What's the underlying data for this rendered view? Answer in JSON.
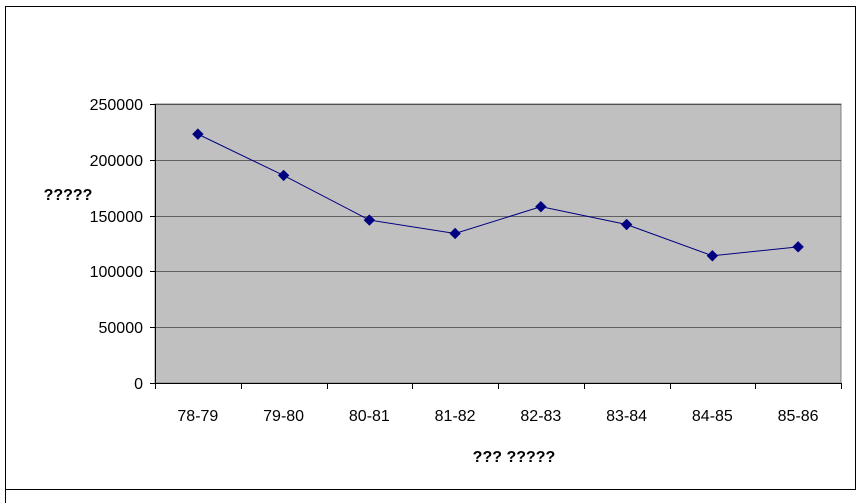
{
  "chart_data": {
    "type": "line",
    "categories": [
      "78-79",
      "79-80",
      "80-81",
      "81-82",
      "82-83",
      "83-84",
      "84-85",
      "85-86"
    ],
    "series": [
      {
        "values": [
          223000,
          186000,
          146000,
          134000,
          158000,
          142000,
          114000,
          122000
        ]
      }
    ],
    "y_ticks": [
      0,
      50000,
      100000,
      150000,
      200000,
      250000
    ],
    "ylim": [
      0,
      250000
    ],
    "xlabel": "??? ?????",
    "ylabel": "?????",
    "grid": true,
    "colors": {
      "plot_background": "#c0c0c0",
      "series": "#000080",
      "gridline": "#000000"
    }
  }
}
